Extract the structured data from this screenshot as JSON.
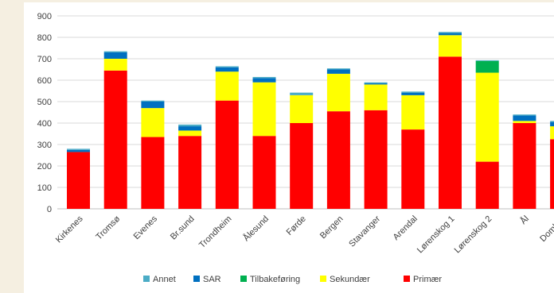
{
  "chart_data": {
    "type": "bar",
    "stacked": true,
    "categories": [
      "Kirkenes",
      "Tromsø",
      "Evenes",
      "Br.sund",
      "Trondheim",
      "Ålesund",
      "Førde",
      "Bergen",
      "Stavanger",
      "Arendal",
      "Lørenskog 1",
      "Lørenskog 2",
      "Ål",
      "Dombås"
    ],
    "series": [
      {
        "name": "Primær",
        "color": "#ff0000",
        "values": [
          265,
          645,
          335,
          340,
          505,
          340,
          400,
          455,
          460,
          370,
          710,
          220,
          400,
          325
        ]
      },
      {
        "name": "Sekundær",
        "color": "#ffff00",
        "values": [
          0,
          55,
          135,
          25,
          135,
          250,
          130,
          175,
          120,
          160,
          100,
          415,
          10,
          60
        ]
      },
      {
        "name": "Tilbakeføring",
        "color": "#00b050",
        "values": [
          0,
          0,
          0,
          0,
          0,
          0,
          0,
          0,
          0,
          0,
          0,
          55,
          0,
          0
        ]
      },
      {
        "name": "SAR",
        "color": "#0070c0",
        "values": [
          10,
          30,
          30,
          20,
          20,
          20,
          0,
          20,
          5,
          12,
          10,
          0,
          25,
          20
        ]
      },
      {
        "name": "Annet",
        "color": "#4bacc6",
        "values": [
          5,
          5,
          5,
          8,
          5,
          5,
          12,
          5,
          5,
          5,
          5,
          3,
          5,
          5
        ]
      }
    ],
    "legend_order": [
      "Annet",
      "SAR",
      "Tilbakeføring",
      "Sekundær",
      "Primær"
    ],
    "ylim": [
      0,
      900
    ],
    "yticks": [
      "0",
      "100",
      "200",
      "300",
      "400",
      "500",
      "600",
      "700",
      "800",
      "900"
    ],
    "grid": "horizontal",
    "legend_position": "bottom",
    "title": "",
    "xlabel": "",
    "ylabel": ""
  }
}
